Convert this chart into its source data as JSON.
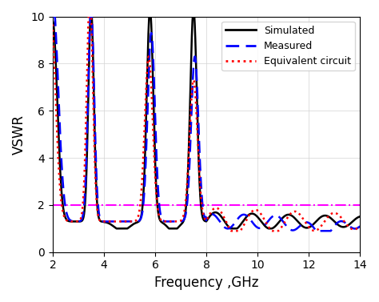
{
  "title": "",
  "xlabel": "Frequency ,GHz",
  "ylabel": "VSWR",
  "xlim": [
    2,
    14
  ],
  "ylim": [
    0,
    10
  ],
  "xticks": [
    2,
    4,
    6,
    8,
    10,
    12,
    14
  ],
  "yticks": [
    0,
    2,
    4,
    6,
    8,
    10
  ],
  "ref_line_y": 2.0,
  "ref_line_color": "#FF00FF",
  "simulated_color": "#000000",
  "measured_color": "#0000FF",
  "equiv_color": "#FF0000",
  "legend_labels": [
    "Simulated",
    "Measured",
    "Equivalent circuit"
  ],
  "figsize": [
    4.74,
    3.77
  ],
  "dpi": 100
}
